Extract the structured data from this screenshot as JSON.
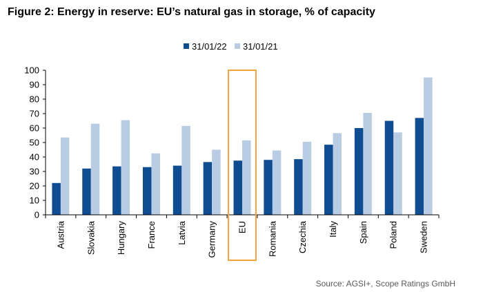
{
  "figure": {
    "title": "Figure 2: Energy in reserve: EU’s natural gas in storage, % of capacity",
    "source": "Source: AGSI+, Scope Ratings GmbH"
  },
  "chart_data": {
    "type": "bar",
    "title": "Figure 2: Energy in reserve: EU’s natural gas in storage, % of capacity",
    "xlabel": "",
    "ylabel": "",
    "ylim": [
      0,
      100
    ],
    "yticks": [
      0,
      10,
      20,
      30,
      40,
      50,
      60,
      70,
      80,
      90,
      100
    ],
    "grid": false,
    "legend": "top-center",
    "highlight_category": "EU",
    "highlight_color": "#f0a23c",
    "categories": [
      "Austria",
      "Slovakia",
      "Hungary",
      "France",
      "Latvia",
      "Germany",
      "EU",
      "Romania",
      "Czechia",
      "Italy",
      "Spain",
      "Poland",
      "Sweden"
    ],
    "series": [
      {
        "name": "31/01/22",
        "color": "#0e4d92",
        "values": [
          22,
          32,
          33.5,
          33,
          34,
          36.5,
          37.5,
          38,
          38.5,
          48.5,
          60,
          65,
          67
        ]
      },
      {
        "name": "31/01/21",
        "color": "#b8cce4",
        "values": [
          53.5,
          63,
          65.5,
          42.5,
          61.5,
          45,
          51.5,
          44.5,
          50.5,
          56.5,
          70.5,
          57,
          95
        ]
      }
    ]
  }
}
